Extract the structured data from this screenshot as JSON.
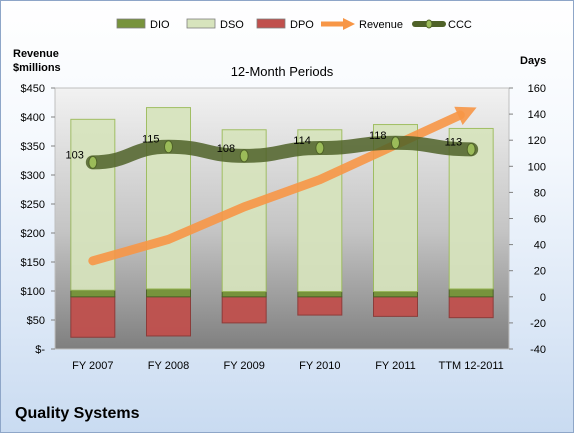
{
  "company": "Quality Systems",
  "chart_data": {
    "type": "bar",
    "title": "12-Month Periods",
    "categories": [
      "FY 2007",
      "FY 2008",
      "FY 2009",
      "FY 2010",
      "FY 2011",
      "TTM 12-2011"
    ],
    "left_axis": {
      "label_line1": "Revenue",
      "label_line2": "$millions",
      "range": [
        0,
        450
      ],
      "ticks": [
        0,
        50,
        100,
        150,
        200,
        250,
        300,
        350,
        400,
        450
      ],
      "tick_labels": [
        "$-",
        "$50",
        "$100",
        "$150",
        "$200",
        "$250",
        "$300",
        "$350",
        "$400",
        "$450"
      ]
    },
    "right_axis": {
      "label": "Days",
      "range": [
        -40,
        160
      ],
      "ticks": [
        -40,
        -20,
        0,
        20,
        40,
        60,
        80,
        100,
        120,
        140,
        160
      ]
    },
    "legend": {
      "position": "top",
      "items": [
        {
          "name": "DIO",
          "kind": "bar",
          "color": "#77933c"
        },
        {
          "name": "DSO",
          "kind": "bar",
          "color": "#d7e4bd"
        },
        {
          "name": "DPO",
          "kind": "bar",
          "color": "#c0504d"
        },
        {
          "name": "Revenue",
          "kind": "arrow",
          "color": "#f79646"
        },
        {
          "name": "CCC",
          "kind": "line",
          "color": "#4f6228"
        }
      ]
    },
    "series": [
      {
        "name": "DIO",
        "axis": "days",
        "values": [
          5,
          6,
          4,
          4,
          4,
          6
        ],
        "color": "#77933c"
      },
      {
        "name": "DSO",
        "axis": "days",
        "values": [
          131,
          139,
          124,
          124,
          128,
          123
        ],
        "color": "#d7e4bd"
      },
      {
        "name": "DPO",
        "axis": "days",
        "values": [
          -31,
          -30,
          -20,
          -14,
          -15,
          -16
        ],
        "color": "#c0504d"
      },
      {
        "name": "Revenue",
        "axis": "revenue",
        "values": [
          152,
          189,
          245,
          292,
          352,
          412
        ],
        "color": "#f79646"
      },
      {
        "name": "CCC",
        "axis": "days",
        "values": [
          103,
          115,
          108,
          114,
          118,
          113
        ],
        "labels": [
          "103",
          "115",
          "108",
          "114",
          "118",
          "113"
        ],
        "color": "#4f6228"
      }
    ],
    "grid": false
  }
}
